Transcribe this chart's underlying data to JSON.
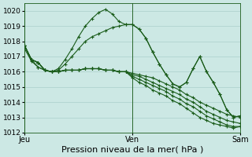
{
  "xlabel": "Pression niveau de la mer( hPa )",
  "bg_color": "#cce8e4",
  "grid_color": "#aacfcb",
  "line_color": "#1a5c1a",
  "ylim": [
    1012,
    1020.5
  ],
  "xlim": [
    0,
    32
  ],
  "xtick_labels": [
    "Jeu",
    "Ven",
    "Sam"
  ],
  "xtick_positions": [
    0,
    16,
    32
  ],
  "xlabel_fontsize": 8,
  "ytick_fontsize": 6.5,
  "xtick_fontsize": 7,
  "series": [
    [
      1017.7,
      1016.8,
      1016.6,
      1016.1,
      1016.0,
      1016.0,
      1016.1,
      1016.1,
      1016.1,
      1016.2,
      1016.2,
      1016.2,
      1016.1,
      1016.1,
      1016.0,
      1016.0,
      1015.9,
      1015.8,
      1015.7,
      1015.6,
      1015.4,
      1015.2,
      1015.0,
      1014.8,
      1014.5,
      1014.3,
      1014.0,
      1013.8,
      1013.6,
      1013.4,
      1013.2,
      1013.1,
      1013.0
    ],
    [
      1017.7,
      1016.8,
      1016.6,
      1016.1,
      1016.0,
      1016.0,
      1016.1,
      1016.1,
      1016.1,
      1016.2,
      1016.2,
      1016.2,
      1016.1,
      1016.1,
      1016.0,
      1016.0,
      1015.8,
      1015.7,
      1015.5,
      1015.3,
      1015.1,
      1014.9,
      1014.7,
      1014.5,
      1014.2,
      1014.0,
      1013.7,
      1013.4,
      1013.2,
      1013.0,
      1012.8,
      1012.7,
      1012.6
    ],
    [
      1017.7,
      1016.8,
      1016.6,
      1016.1,
      1016.0,
      1016.0,
      1016.1,
      1016.1,
      1016.1,
      1016.2,
      1016.2,
      1016.2,
      1016.1,
      1016.1,
      1016.0,
      1016.0,
      1015.7,
      1015.5,
      1015.3,
      1015.1,
      1014.9,
      1014.7,
      1014.4,
      1014.2,
      1013.9,
      1013.7,
      1013.4,
      1013.1,
      1012.9,
      1012.7,
      1012.5,
      1012.4,
      1012.4
    ],
    [
      1017.7,
      1016.8,
      1016.6,
      1016.1,
      1016.0,
      1016.0,
      1016.1,
      1016.1,
      1016.1,
      1016.2,
      1016.2,
      1016.2,
      1016.1,
      1016.1,
      1016.0,
      1016.0,
      1015.6,
      1015.3,
      1015.1,
      1014.8,
      1014.6,
      1014.4,
      1014.1,
      1013.9,
      1013.6,
      1013.3,
      1013.0,
      1012.8,
      1012.6,
      1012.5,
      1012.4,
      1012.3,
      1012.4
    ],
    [
      1017.5,
      1016.7,
      1016.3,
      1016.1,
      1016.0,
      1016.1,
      1016.5,
      1017.0,
      1017.5,
      1018.0,
      1018.3,
      1018.5,
      1018.7,
      1018.9,
      1019.0,
      1019.1,
      1019.1,
      1018.8,
      1018.2,
      1017.3,
      1016.5,
      1015.8,
      1015.2,
      1015.0,
      1015.3,
      1016.2,
      1017.0,
      1016.0,
      1015.3,
      1014.5,
      1013.5,
      1013.0,
      1013.1
    ],
    [
      1017.7,
      1016.8,
      1016.3,
      1016.1,
      1016.0,
      1016.2,
      1016.8,
      1017.5,
      1018.3,
      1019.0,
      1019.5,
      1019.9,
      1020.1,
      1019.8,
      1019.3,
      1019.1,
      1019.1,
      1018.8,
      1018.2,
      1017.3,
      1016.5,
      1015.8,
      1015.2,
      1015.0,
      1015.3,
      1016.2,
      1017.0,
      1016.0,
      1015.3,
      1014.5,
      1013.5,
      1013.0,
      1013.1
    ]
  ]
}
